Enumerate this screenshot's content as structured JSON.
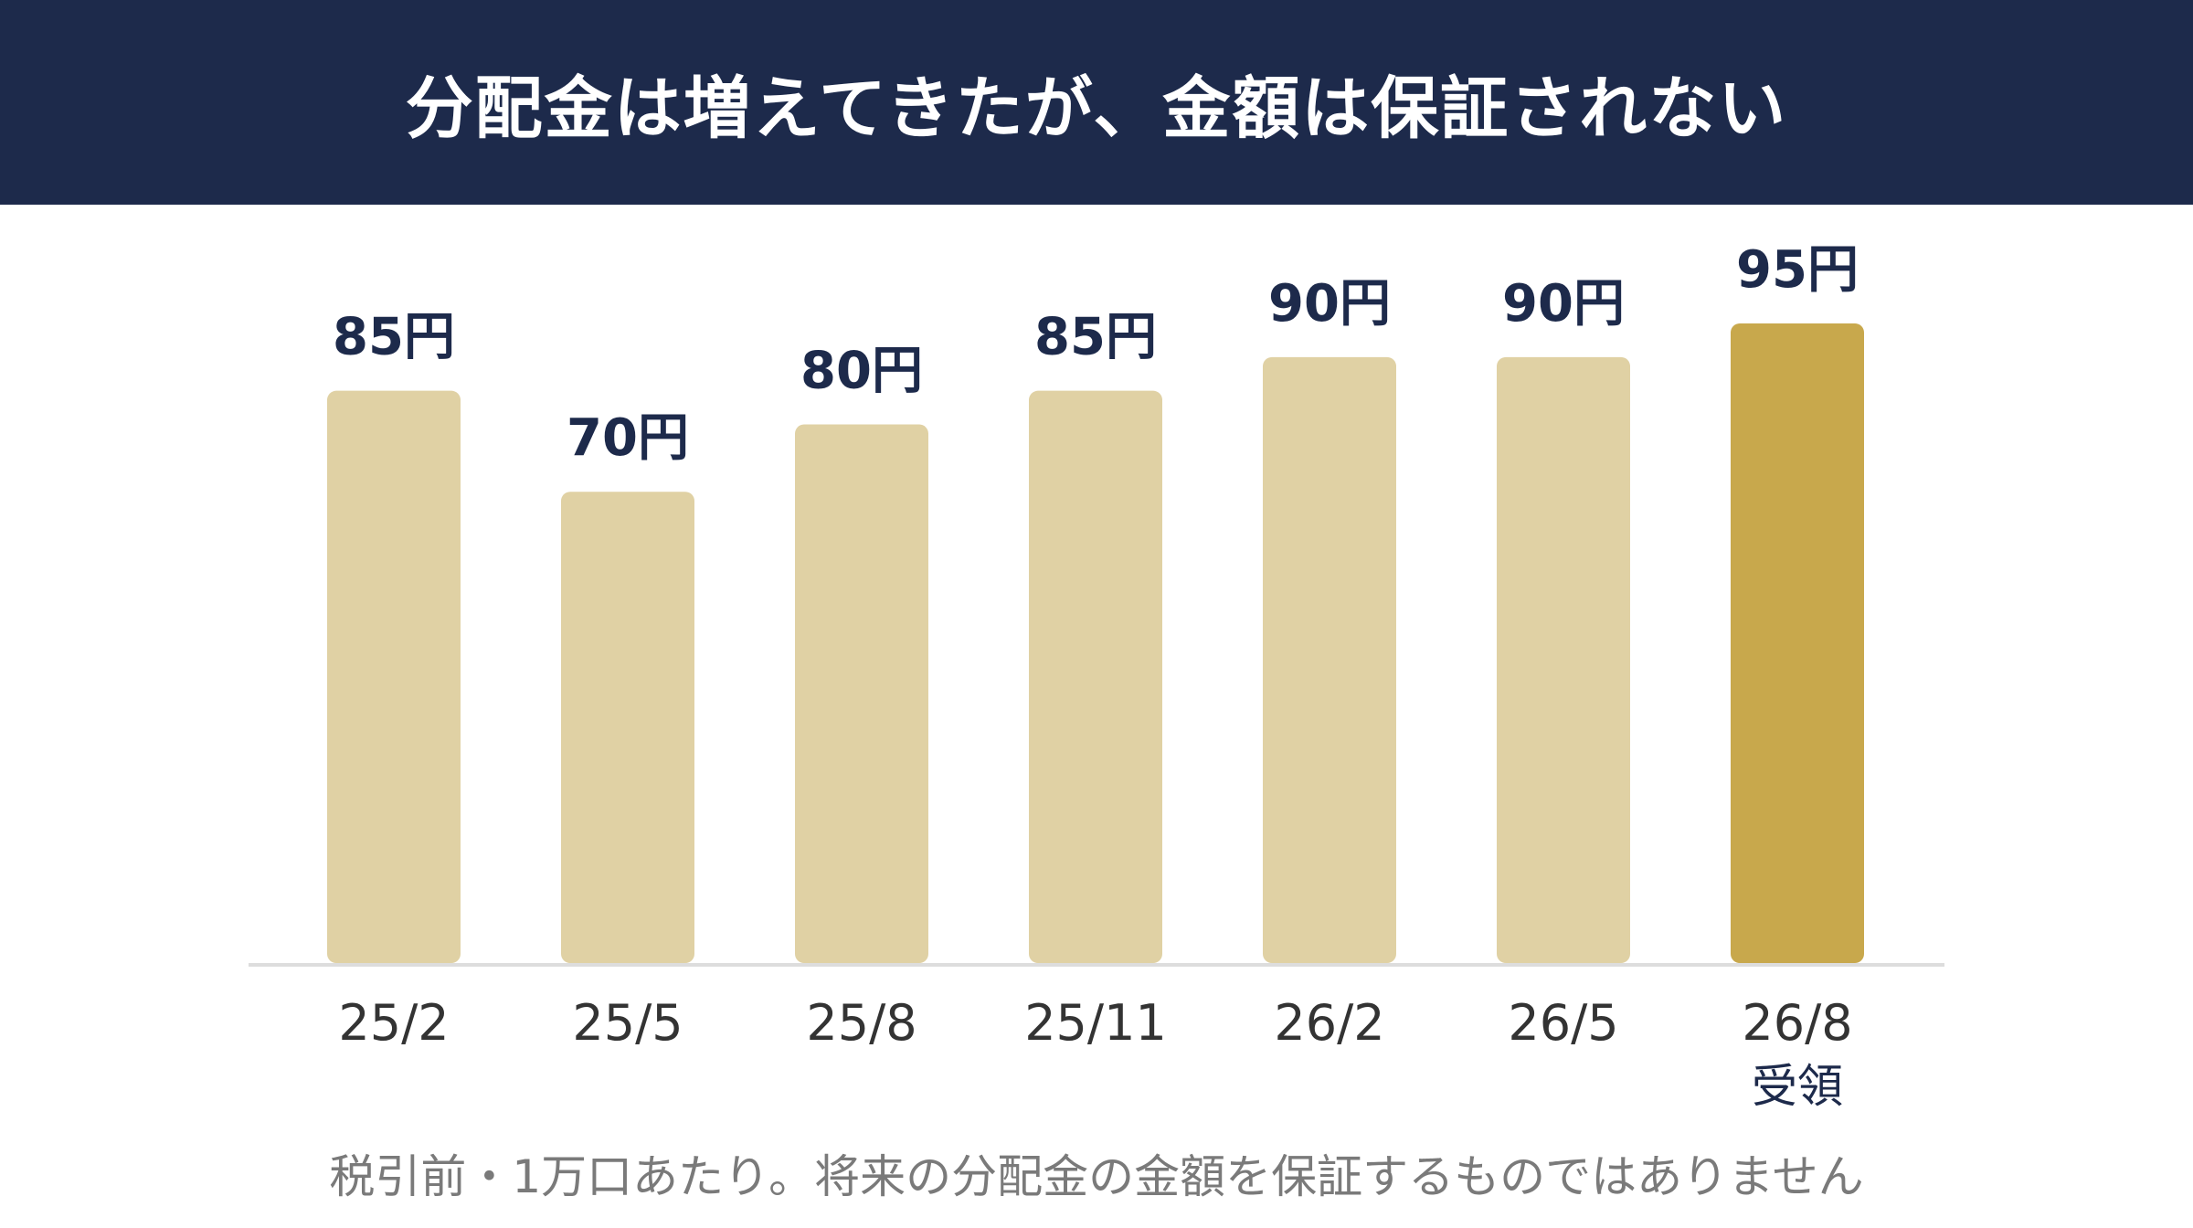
{
  "title": "分配金は増えてきたが、金額は保証されない",
  "footnote": "税引前・1万口あたり。将来の分配金の金額を保証するものではありません",
  "colors": {
    "header_bg": "#1d2a4b",
    "bar": "#e0d1a4",
    "bar_highlight": "#c8a84c",
    "value_label": "#1d2a4b",
    "tick_label": "#333333",
    "baseline": "#dddddd"
  },
  "chart_data": {
    "type": "bar",
    "categories": [
      "25/2",
      "25/5",
      "25/8",
      "25/11",
      "26/2",
      "26/5",
      "26/8"
    ],
    "values": [
      85,
      70,
      80,
      85,
      90,
      90,
      95
    ],
    "value_labels": [
      "85円",
      "70円",
      "80円",
      "85円",
      "90円",
      "90円",
      "95円"
    ],
    "category_sublabels": [
      "",
      "",
      "",
      "",
      "",
      "",
      "受領"
    ],
    "highlight_index": 6,
    "unit": "円",
    "ylim": [
      0,
      95
    ],
    "grid": false,
    "legend": "none"
  }
}
